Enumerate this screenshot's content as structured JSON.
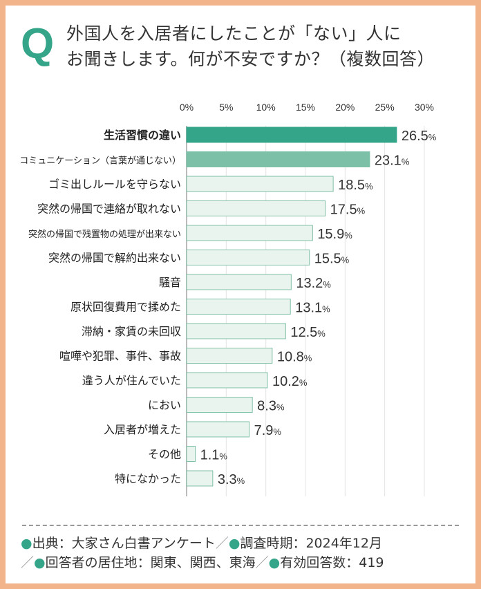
{
  "title": {
    "q_mark": "Q",
    "line1": "外国人を入居者にしたことが「ない」人に",
    "line2": "お聞きします。何が不安ですか？（複数回答）"
  },
  "chart_data": {
    "type": "bar",
    "orientation": "horizontal",
    "unit": "%",
    "xlim": [
      0,
      30
    ],
    "xticks": [
      "0%",
      "5%",
      "10%",
      "15%",
      "20%",
      "25%",
      "30%"
    ],
    "grid": true,
    "categories": [
      "生活習慣の違い",
      "コミュニケーション（言葉が通じない）",
      "ゴミ出しルールを守らない",
      "突然の帰国で連絡が取れない",
      "突然の帰国で残置物の処理が出来ない",
      "突然の帰国で解約出来ない",
      "騒音",
      "原状回復費用で揉めた",
      "滞納・家賃の未回収",
      "喧嘩や犯罪、事件、事故",
      "違う人が住んでいた",
      "におい",
      "入居者が増えた",
      "その他",
      "特になかった"
    ],
    "values": [
      26.5,
      23.1,
      18.5,
      17.5,
      15.9,
      15.5,
      13.2,
      13.1,
      12.5,
      10.8,
      10.2,
      8.3,
      7.9,
      1.1,
      3.3
    ],
    "colors": {
      "first": "#35a58a",
      "second": "#7cc0a8",
      "rest": "#eaf4ee",
      "rest_border": "#7fbfa6"
    }
  },
  "footer": {
    "line1_a": "出典：大家さん白書アンケート",
    "line1_b": "調査時期：2024年12月",
    "line2_a": "回答者の居住地：関東、関西、東海",
    "line2_b": "有効回答数：419",
    "separator": "／",
    "bullet": "●"
  }
}
